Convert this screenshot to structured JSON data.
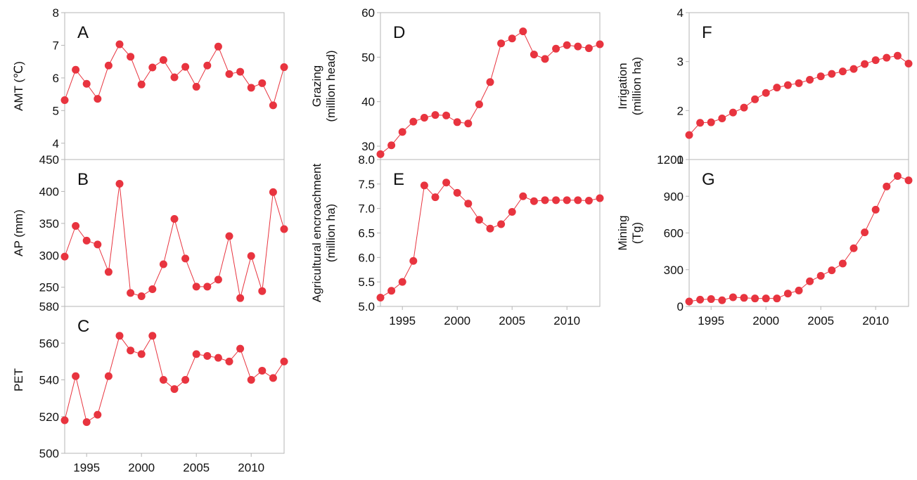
{
  "colors": {
    "series": "#e8343f",
    "axis": "#b5b5b5",
    "text": "#111111"
  },
  "chart_data": [
    {
      "type": "line",
      "panel": "A",
      "ylabel": "AMT (℃)",
      "ylim": [
        3.5,
        8
      ],
      "yticks": [
        4,
        5,
        6,
        7,
        8
      ],
      "ytick_labels": [
        "4",
        "5",
        "6",
        "7",
        "8"
      ],
      "xlim": [
        1993,
        2013
      ],
      "xticks": [],
      "xtick_labels": [],
      "x": [
        1993,
        1994,
        1995,
        1996,
        1997,
        1998,
        1999,
        2000,
        2001,
        2002,
        2003,
        2004,
        2005,
        2006,
        2007,
        2008,
        2009,
        2010,
        2011,
        2012,
        2013
      ],
      "series": [
        {
          "values": [
            5.32,
            6.25,
            5.82,
            5.36,
            6.38,
            7.03,
            6.65,
            5.8,
            6.32,
            6.55,
            6.02,
            6.34,
            5.73,
            6.38,
            6.96,
            6.12,
            6.19,
            5.7,
            5.84,
            5.16,
            6.33
          ]
        }
      ]
    },
    {
      "type": "line",
      "panel": "B",
      "ylabel": "AP (mm)",
      "ylim": [
        220,
        450
      ],
      "yticks": [
        250,
        300,
        350,
        400,
        450
      ],
      "ytick_labels": [
        "250",
        "300",
        "350",
        "400",
        "450"
      ],
      "xlim": [
        1993,
        2013
      ],
      "xticks": [],
      "xtick_labels": [],
      "x": [
        1993,
        1994,
        1995,
        1996,
        1997,
        1998,
        1999,
        2000,
        2001,
        2002,
        2003,
        2004,
        2005,
        2006,
        2007,
        2008,
        2009,
        2010,
        2011,
        2012,
        2013
      ],
      "series": [
        {
          "values": [
            298,
            346,
            323,
            317,
            274,
            412,
            241,
            236,
            247,
            286,
            357,
            295,
            251,
            251,
            262,
            330,
            233,
            299,
            244,
            399,
            341
          ]
        }
      ]
    },
    {
      "type": "line",
      "panel": "C",
      "ylabel": "PET",
      "ylim": [
        500,
        580
      ],
      "yticks": [
        500,
        520,
        540,
        560,
        580
      ],
      "ytick_labels": [
        "500",
        "520",
        "540",
        "560",
        "580"
      ],
      "xlim": [
        1993,
        2013
      ],
      "xticks": [
        1995,
        2000,
        2005,
        2010
      ],
      "xtick_labels": [
        "1995",
        "2000",
        "2005",
        "2010"
      ],
      "x": [
        1993,
        1994,
        1995,
        1996,
        1997,
        1998,
        1999,
        2000,
        2001,
        2002,
        2003,
        2004,
        2005,
        2006,
        2007,
        2008,
        2009,
        2010,
        2011,
        2012,
        2013
      ],
      "series": [
        {
          "values": [
            518,
            542,
            517,
            521,
            542,
            564,
            556,
            554,
            564,
            540,
            535,
            540,
            554,
            553,
            552,
            550,
            557,
            540,
            545,
            541,
            550
          ]
        }
      ]
    },
    {
      "type": "line",
      "panel": "D",
      "ylabel": "Grazing\n(million head)",
      "ylim": [
        27,
        60
      ],
      "yticks": [
        30,
        40,
        50,
        60
      ],
      "ytick_labels": [
        "30",
        "40",
        "50",
        "60"
      ],
      "xlim": [
        1993,
        2013
      ],
      "xticks": [],
      "xtick_labels": [],
      "x": [
        1993,
        1994,
        1995,
        1996,
        1997,
        1998,
        1999,
        2000,
        2001,
        2002,
        2003,
        2004,
        2005,
        2006,
        2007,
        2008,
        2009,
        2010,
        2011,
        2012,
        2013
      ],
      "series": [
        {
          "values": [
            28.2,
            30.2,
            33.2,
            35.5,
            36.4,
            37.0,
            36.9,
            35.4,
            35.1,
            39.4,
            44.4,
            53.1,
            54.2,
            55.8,
            50.6,
            49.6,
            51.9,
            52.7,
            52.4,
            52.0,
            52.9
          ]
        }
      ]
    },
    {
      "type": "line",
      "panel": "E",
      "ylabel": "Agricultural encroachment\n(million ha)",
      "ylim": [
        5.0,
        8.0
      ],
      "yticks": [
        5.0,
        5.5,
        6.0,
        6.5,
        7.0,
        7.5,
        8.0
      ],
      "ytick_labels": [
        "5.0",
        "5.5",
        "6.0",
        "6.5",
        "7.0",
        "7.5",
        "8.0"
      ],
      "xlim": [
        1993,
        2013
      ],
      "xticks": [
        1995,
        2000,
        2005,
        2010
      ],
      "xtick_labels": [
        "1995",
        "2000",
        "2005",
        "2010"
      ],
      "x": [
        1993,
        1994,
        1995,
        1996,
        1997,
        1998,
        1999,
        2000,
        2001,
        2002,
        2003,
        2004,
        2005,
        2006,
        2007,
        2008,
        2009,
        2010,
        2011,
        2012,
        2013
      ],
      "series": [
        {
          "values": [
            5.18,
            5.32,
            5.5,
            5.93,
            7.47,
            7.23,
            7.53,
            7.32,
            7.1,
            6.77,
            6.59,
            6.68,
            6.93,
            7.25,
            7.15,
            7.17,
            7.17,
            7.17,
            7.17,
            7.16,
            7.21
          ]
        }
      ]
    },
    {
      "type": "line",
      "panel": "F",
      "ylabel": "Irrigation\n(million ha)",
      "ylim": [
        1,
        4
      ],
      "yticks": [
        1,
        2,
        3,
        4
      ],
      "ytick_labels": [
        "1",
        "2",
        "3",
        "4"
      ],
      "xlim": [
        1993,
        2013
      ],
      "xticks": [],
      "xtick_labels": [],
      "x": [
        1993,
        1994,
        1995,
        1996,
        1997,
        1998,
        1999,
        2000,
        2001,
        2002,
        2003,
        2004,
        2005,
        2006,
        2007,
        2008,
        2009,
        2010,
        2011,
        2012,
        2013
      ],
      "series": [
        {
          "values": [
            1.5,
            1.75,
            1.76,
            1.84,
            1.96,
            2.06,
            2.23,
            2.36,
            2.47,
            2.52,
            2.56,
            2.63,
            2.7,
            2.75,
            2.8,
            2.85,
            2.95,
            3.03,
            3.08,
            3.12,
            2.96
          ]
        }
      ]
    },
    {
      "type": "line",
      "panel": "G",
      "ylabel": "Mining\n(Tg)",
      "ylim": [
        0,
        1200
      ],
      "yticks": [
        0,
        300,
        600,
        900,
        1200
      ],
      "ytick_labels": [
        "0",
        "300",
        "600",
        "900",
        "1200"
      ],
      "xlim": [
        1993,
        2013
      ],
      "xticks": [
        1995,
        2000,
        2005,
        2010
      ],
      "xtick_labels": [
        "1995",
        "2000",
        "2005",
        "2010"
      ],
      "x": [
        1993,
        1994,
        1995,
        1996,
        1997,
        1998,
        1999,
        2000,
        2001,
        2002,
        2003,
        2004,
        2005,
        2006,
        2007,
        2008,
        2009,
        2010,
        2011,
        2012,
        2013
      ],
      "series": [
        {
          "values": [
            40,
            55,
            60,
            50,
            75,
            70,
            65,
            65,
            65,
            105,
            130,
            205,
            250,
            295,
            350,
            475,
            605,
            790,
            980,
            1065,
            1030
          ]
        }
      ]
    }
  ]
}
